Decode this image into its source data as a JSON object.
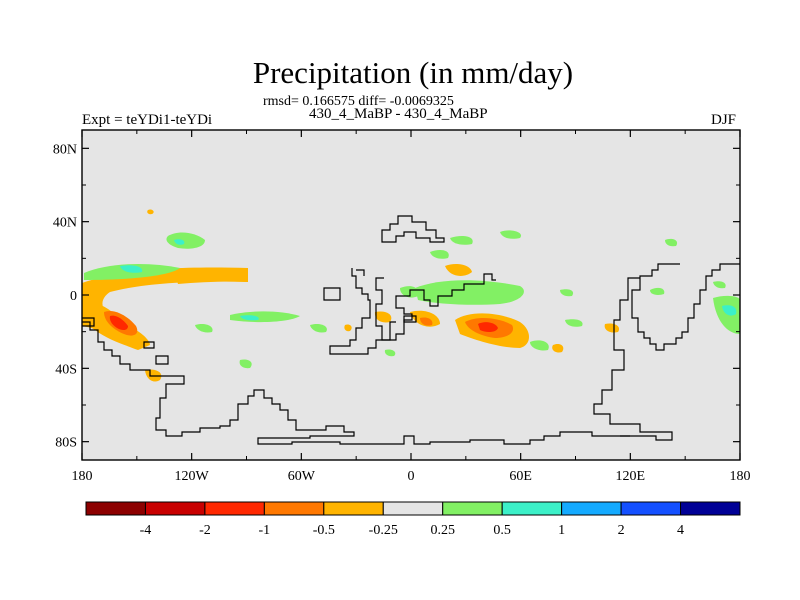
{
  "figure": {
    "title": "Precipitation (in mm/day)",
    "stats": "rmsd= 0.166575 diff= -0.0069325",
    "case": "430_4_MaBP - 430_4_MaBP",
    "expt": "Expt = teYDi1-teYDi",
    "season": "DJF"
  },
  "map": {
    "background_color": "#e5e5e5",
    "lat_ticks": [
      "80N",
      "40N",
      "0",
      "40S",
      "80S"
    ],
    "lon_ticks": [
      "180",
      "120W",
      "60W",
      "0",
      "60E",
      "120E",
      "180"
    ],
    "lat_range": [
      -90,
      90
    ],
    "lon_range": [
      -180,
      180
    ]
  },
  "colorbar": {
    "colors": [
      "#8c0000",
      "#c80000",
      "#ff2800",
      "#ff7800",
      "#ffb400",
      "#e5e5e5",
      "#82f064",
      "#3cf0c8",
      "#14aaff",
      "#1450ff",
      "#000096"
    ],
    "labels": [
      "-4",
      "-2",
      "-1",
      "-0.5",
      "-0.25",
      "0.25",
      "0.5",
      "1",
      "2",
      "4"
    ]
  },
  "anomaly_regions": [
    {
      "name": "east-pacific-south-band",
      "sign": "negative",
      "level": "-0.25",
      "color": "#ffb400",
      "lon": [
        -180,
        -120
      ],
      "lat": [
        -38,
        8
      ]
    },
    {
      "name": "east-pacific-south-core",
      "sign": "negative",
      "level": "-1",
      "color": "#ff2800",
      "lon": [
        -170,
        -155
      ],
      "lat": [
        -22,
        -12
      ]
    },
    {
      "name": "tropical-pacific-band",
      "sign": "negative",
      "level": "-0.25",
      "color": "#ffb400",
      "lon": [
        -175,
        -105
      ],
      "lat": [
        3,
        14
      ]
    },
    {
      "name": "south-indian-ocean",
      "sign": "negative",
      "level": "-0.5",
      "color": "#ff7800",
      "lon": [
        25,
        55
      ],
      "lat": [
        -30,
        -12
      ]
    },
    {
      "name": "south-indian-ocean-core",
      "sign": "negative",
      "level": "-1",
      "color": "#ff2800",
      "lon": [
        35,
        48
      ],
      "lat": [
        -24,
        -14
      ]
    },
    {
      "name": "africa-south",
      "sign": "negative",
      "level": "-0.25",
      "color": "#ffb400",
      "lon": [
        -5,
        20
      ],
      "lat": [
        -20,
        -10
      ]
    },
    {
      "name": "north-africa-band",
      "sign": "negative",
      "level": "-0.25",
      "color": "#ffb400",
      "lon": [
        20,
        40
      ],
      "lat": [
        8,
        16
      ]
    },
    {
      "name": "north-pacific",
      "sign": "positive",
      "level": "0.25",
      "color": "#82f064",
      "lon": [
        -140,
        -115
      ],
      "lat": [
        20,
        32
      ]
    },
    {
      "name": "tropical-central-pacific",
      "sign": "positive",
      "level": "0.25",
      "color": "#82f064",
      "lon": [
        -170,
        -135
      ],
      "lat": [
        10,
        18
      ]
    },
    {
      "name": "equatorial-indian-ocean",
      "sign": "positive",
      "level": "0.25",
      "color": "#82f064",
      "lon": [
        0,
        60
      ],
      "lat": [
        -8,
        6
      ]
    },
    {
      "name": "north-atlantic",
      "sign": "positive",
      "level": "0.25",
      "color": "#82f064",
      "lon": [
        20,
        35
      ],
      "lat": [
        28,
        34
      ]
    },
    {
      "name": "maritime-continent-east",
      "sign": "positive",
      "level": "0.25",
      "color": "#82f064",
      "lon": [
        168,
        180
      ],
      "lat": [
        -15,
        0
      ]
    }
  ]
}
